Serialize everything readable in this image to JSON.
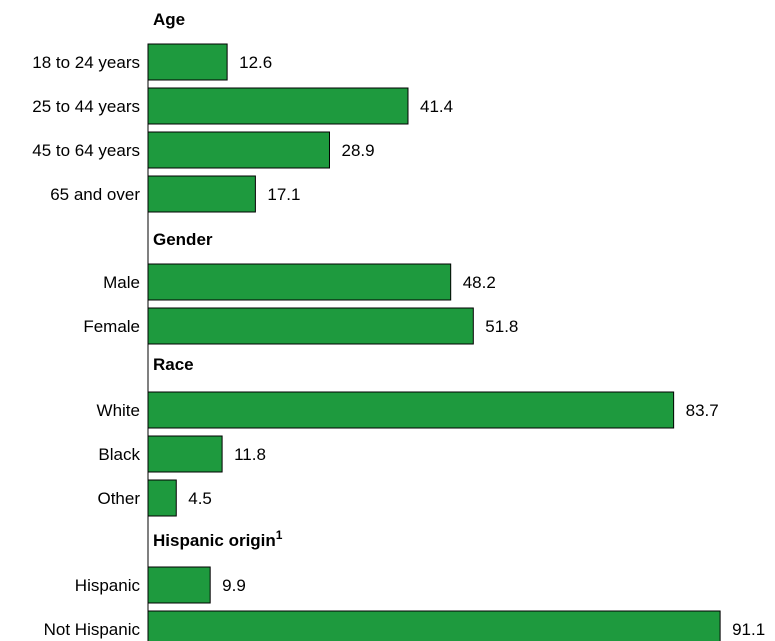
{
  "chart_data": {
    "type": "bar",
    "orientation": "horizontal",
    "bar_color": "#1e9a3e",
    "xlim": [
      0,
      100
    ],
    "groups": [
      {
        "title": "Age",
        "superscript": "",
        "categories": [
          "18 to 24 years",
          "25 to 44 years",
          "45 to 64 years",
          "65 and over"
        ],
        "values": [
          12.6,
          41.4,
          28.9,
          17.1
        ]
      },
      {
        "title": "Gender",
        "superscript": "",
        "categories": [
          "Male",
          "Female"
        ],
        "values": [
          48.2,
          51.8
        ]
      },
      {
        "title": "Race",
        "superscript": "",
        "categories": [
          "White",
          "Black",
          "Other"
        ],
        "values": [
          83.7,
          11.8,
          4.5
        ]
      },
      {
        "title": "Hispanic origin",
        "superscript": "1",
        "categories": [
          "Hispanic",
          "Not Hispanic"
        ],
        "values": [
          9.9,
          91.1
        ]
      }
    ]
  }
}
